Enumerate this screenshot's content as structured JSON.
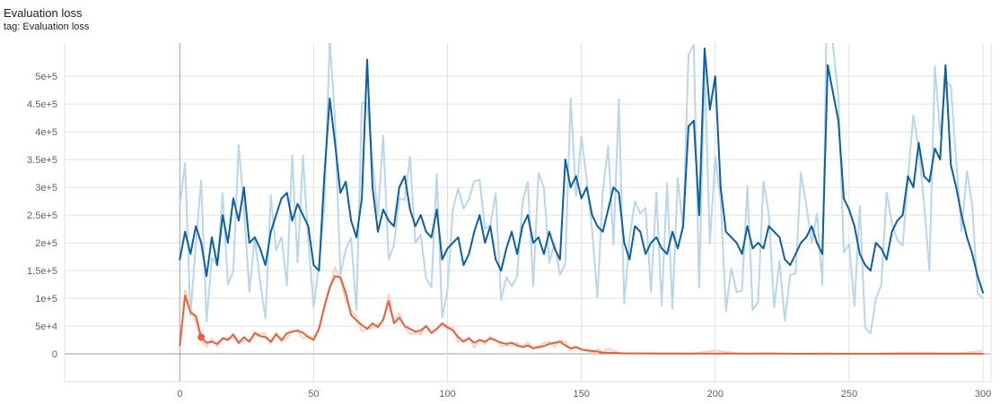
{
  "header": {
    "title": "Evaluation loss",
    "subtitle": "tag: Evaluation loss"
  },
  "chart_data": {
    "type": "line",
    "title": "Evaluation loss",
    "subtitle": "tag: Evaluation loss",
    "xlabel": "",
    "ylabel": "",
    "xlim": [
      -43,
      303
    ],
    "ylim": [
      -50000,
      560000
    ],
    "x_ticks": [
      0,
      50,
      100,
      150,
      200,
      250,
      300
    ],
    "y_ticks": [
      0,
      50000,
      100000,
      150000,
      200000,
      250000,
      300000,
      350000,
      400000,
      450000,
      500000
    ],
    "y_tick_labels": [
      "0",
      "5e+4",
      "1e+5",
      "1.5e+5",
      "2e+5",
      "2.5e+5",
      "3e+5",
      "3.5e+5",
      "4e+5",
      "4.5e+5",
      "5e+5"
    ],
    "grid": true,
    "legend": "none",
    "series": [
      {
        "color": "#0b5fa5",
        "raw_color": "#b9d6ea",
        "x": [
          0,
          2,
          4,
          6,
          8,
          10,
          12,
          14,
          16,
          18,
          20,
          22,
          24,
          26,
          28,
          30,
          32,
          34,
          36,
          38,
          40,
          42,
          44,
          46,
          48,
          50,
          52,
          54,
          56,
          58,
          60,
          62,
          64,
          66,
          68,
          70,
          72,
          74,
          76,
          78,
          80,
          82,
          84,
          86,
          88,
          90,
          92,
          94,
          96,
          98,
          100,
          102,
          104,
          106,
          108,
          110,
          112,
          114,
          116,
          118,
          120,
          122,
          124,
          126,
          128,
          130,
          132,
          134,
          136,
          138,
          140,
          142,
          144,
          146,
          148,
          150,
          152,
          154,
          156,
          158,
          160,
          162,
          164,
          166,
          168,
          170,
          172,
          174,
          176,
          178,
          180,
          182,
          184,
          186,
          188,
          190,
          192,
          194,
          196,
          198,
          200,
          202,
          204,
          206,
          208,
          210,
          212,
          214,
          216,
          218,
          220,
          222,
          224,
          226,
          228,
          230,
          232,
          234,
          236,
          238,
          240,
          242,
          244,
          246,
          248,
          250,
          252,
          254,
          256,
          258,
          260,
          262,
          264,
          266,
          268,
          270,
          272,
          274,
          276,
          278,
          280,
          282,
          284,
          286,
          288,
          290,
          292,
          294,
          296,
          298,
          300
        ],
        "values": [
          170000,
          220000,
          180000,
          230000,
          200000,
          140000,
          210000,
          160000,
          250000,
          200000,
          280000,
          240000,
          300000,
          200000,
          210000,
          190000,
          160000,
          220000,
          250000,
          280000,
          290000,
          240000,
          270000,
          250000,
          230000,
          160000,
          150000,
          320000,
          460000,
          380000,
          290000,
          310000,
          240000,
          210000,
          280000,
          530000,
          300000,
          220000,
          260000,
          240000,
          230000,
          300000,
          320000,
          260000,
          230000,
          250000,
          220000,
          210000,
          260000,
          170000,
          190000,
          200000,
          210000,
          160000,
          180000,
          220000,
          250000,
          200000,
          230000,
          170000,
          150000,
          190000,
          220000,
          180000,
          230000,
          250000,
          200000,
          210000,
          180000,
          220000,
          190000,
          170000,
          350000,
          300000,
          320000,
          280000,
          300000,
          250000,
          230000,
          220000,
          260000,
          300000,
          290000,
          200000,
          170000,
          230000,
          220000,
          180000,
          200000,
          210000,
          190000,
          180000,
          220000,
          190000,
          230000,
          410000,
          420000,
          250000,
          550000,
          440000,
          500000,
          300000,
          220000,
          210000,
          200000,
          180000,
          230000,
          190000,
          200000,
          190000,
          230000,
          220000,
          210000,
          170000,
          160000,
          180000,
          200000,
          210000,
          230000,
          200000,
          180000,
          520000,
          470000,
          420000,
          280000,
          260000,
          230000,
          180000,
          160000,
          150000,
          200000,
          190000,
          170000,
          220000,
          240000,
          250000,
          320000,
          300000,
          380000,
          320000,
          310000,
          370000,
          350000,
          520000,
          340000,
          300000,
          250000,
          210000,
          180000,
          140000,
          110000
        ]
      },
      {
        "color": "#e5603b",
        "raw_color": "#fbcfc1",
        "x": [
          0,
          2,
          4,
          6,
          8,
          10,
          12,
          14,
          16,
          18,
          20,
          22,
          24,
          26,
          28,
          30,
          32,
          34,
          36,
          38,
          40,
          42,
          44,
          46,
          48,
          50,
          52,
          54,
          56,
          58,
          60,
          62,
          64,
          66,
          68,
          70,
          72,
          74,
          76,
          78,
          80,
          82,
          84,
          86,
          88,
          90,
          92,
          94,
          96,
          98,
          100,
          102,
          104,
          106,
          108,
          110,
          112,
          114,
          116,
          118,
          120,
          122,
          124,
          126,
          128,
          130,
          132,
          134,
          136,
          138,
          140,
          142,
          144,
          146,
          148,
          150,
          152,
          154,
          156,
          158,
          160,
          165,
          170,
          180,
          190,
          200,
          210,
          220,
          230,
          240,
          250,
          260,
          270,
          280,
          290,
          300
        ],
        "values": [
          15000,
          105000,
          75000,
          68000,
          30000,
          20000,
          22000,
          18000,
          28000,
          25000,
          35000,
          20000,
          30000,
          22000,
          38000,
          32000,
          30000,
          22000,
          35000,
          25000,
          37000,
          40000,
          42000,
          38000,
          30000,
          25000,
          45000,
          85000,
          120000,
          140000,
          138000,
          110000,
          70000,
          60000,
          52000,
          45000,
          55000,
          48000,
          62000,
          95000,
          55000,
          65000,
          50000,
          45000,
          40000,
          42000,
          50000,
          38000,
          45000,
          55000,
          48000,
          42000,
          30000,
          22000,
          28000,
          20000,
          25000,
          22000,
          28000,
          24000,
          20000,
          18000,
          20000,
          15000,
          12000,
          15000,
          10000,
          12000,
          14000,
          18000,
          20000,
          22000,
          15000,
          10000,
          12000,
          8000,
          6000,
          5000,
          4000,
          2000,
          2000,
          1000,
          800,
          600,
          500,
          400,
          300,
          300,
          250,
          250,
          200,
          200,
          200,
          200,
          200,
          150
        ]
      }
    ]
  }
}
